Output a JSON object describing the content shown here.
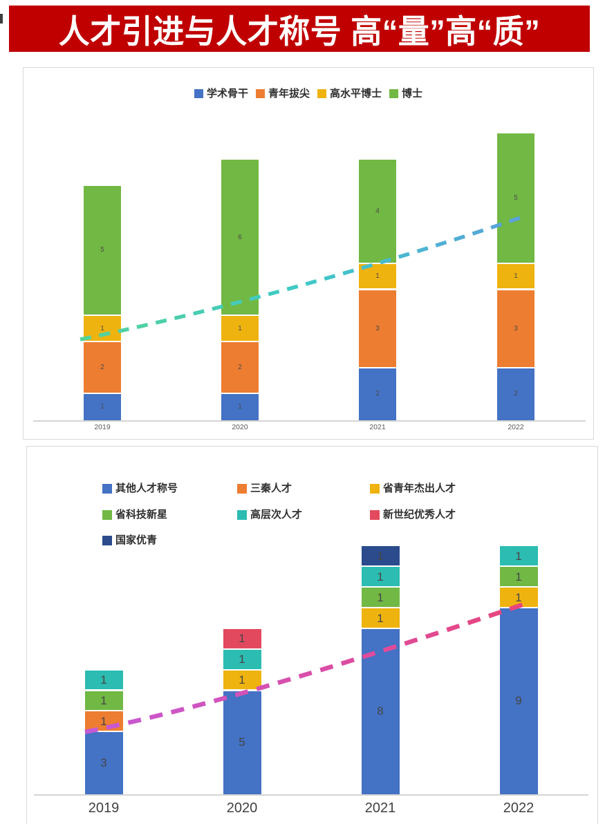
{
  "banner": {
    "title": "人才引进与人才称号 高“量”高“质”",
    "bg_color": "#c00000",
    "text_color": "#ffffff"
  },
  "chart_data": [
    {
      "type": "bar",
      "stacked": true,
      "title": "",
      "legend_position": "top",
      "grid": false,
      "categories": [
        "2019",
        "2020",
        "2021",
        "2022"
      ],
      "series": [
        {
          "name": "学术骨干",
          "color": "#4472c4",
          "values": [
            1,
            1,
            2,
            2
          ]
        },
        {
          "name": "青年拔尖",
          "color": "#ed7d31",
          "values": [
            2,
            2,
            3,
            3
          ]
        },
        {
          "name": "高水平博士",
          "color": "#efb310",
          "values": [
            1,
            1,
            1,
            1
          ]
        },
        {
          "name": "博士",
          "color": "#72b844",
          "values": [
            5,
            6,
            4,
            5
          ]
        }
      ],
      "totals": [
        9,
        10,
        10,
        11
      ],
      "ylim": [
        0,
        13.5
      ],
      "bar_value_labels": true,
      "trendline": {
        "style": "dashed",
        "direction": "rising",
        "colors": [
          "#55d39b",
          "#3ec9c6",
          "#5aa1db"
        ]
      }
    },
    {
      "type": "bar",
      "stacked": true,
      "title": "",
      "legend_position": "top",
      "grid": false,
      "categories": [
        "2019",
        "2020",
        "2021",
        "2022"
      ],
      "series": [
        {
          "name": "其他人才称号",
          "color": "#4472c4",
          "values": [
            3,
            5,
            8,
            9
          ]
        },
        {
          "name": "三秦人才",
          "color": "#ed7d31",
          "values": [
            1,
            0,
            0,
            0
          ]
        },
        {
          "name": "省青年杰出人才",
          "color": "#efb310",
          "values": [
            0,
            1,
            1,
            1
          ]
        },
        {
          "name": "省科技新星",
          "color": "#72b844",
          "values": [
            1,
            0,
            1,
            1
          ]
        },
        {
          "name": "高层次人才",
          "color": "#2cbcb1",
          "values": [
            1,
            1,
            1,
            1
          ]
        },
        {
          "name": "新世纪优秀人才",
          "color": "#e2495e",
          "values": [
            0,
            1,
            0,
            0
          ]
        },
        {
          "name": "国家优青",
          "color": "#2b4b8d",
          "values": [
            0,
            0,
            1,
            0
          ]
        }
      ],
      "totals": [
        6,
        8,
        12,
        12
      ],
      "ylim": [
        0,
        16.8
      ],
      "bar_value_labels": true,
      "trendline": {
        "style": "dashed",
        "direction": "rising",
        "colors": [
          "#c45ad6",
          "#d94fab",
          "#e9457b"
        ]
      }
    }
  ]
}
